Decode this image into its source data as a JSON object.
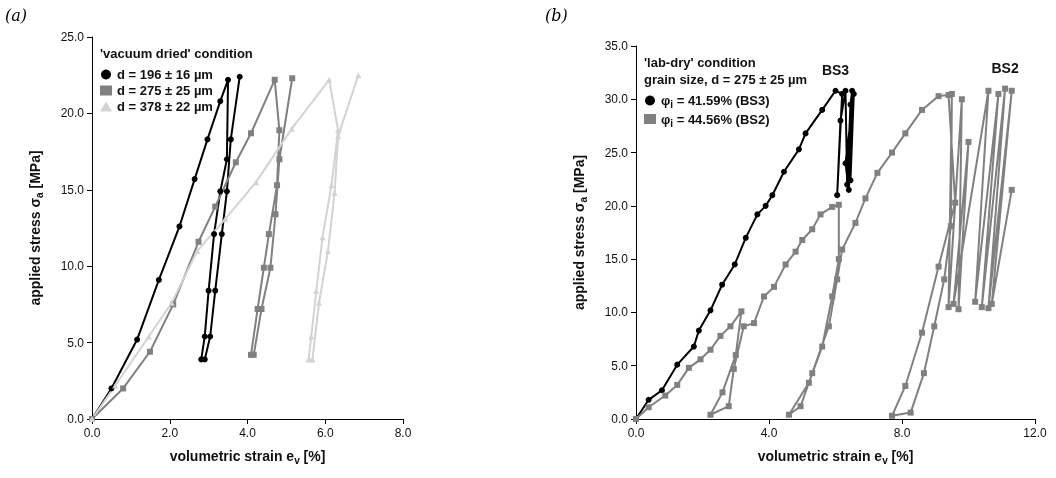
{
  "chart_data": [
    {
      "type": "line",
      "title": "(a)",
      "legend_title": "'vacuum dried' condition",
      "xlabel": "volumetric strain e$_{v}$ [%]",
      "ylabel": "applied stress σ$_{a}$ [MPa]",
      "xlim": [
        0,
        8
      ],
      "ylim": [
        0,
        25
      ],
      "xticks": [
        {
          "value": 0,
          "label": "0.0"
        },
        {
          "value": 2,
          "label": "2.0"
        },
        {
          "value": 4,
          "label": "4.0"
        },
        {
          "value": 6,
          "label": "6.0"
        },
        {
          "value": 8,
          "label": "8.0"
        }
      ],
      "yticks": [
        {
          "value": 0,
          "label": "0.0"
        },
        {
          "value": 5,
          "label": "5.0"
        },
        {
          "value": 10,
          "label": "10.0"
        },
        {
          "value": 15,
          "label": "15.0"
        },
        {
          "value": 20,
          "label": "20.0"
        },
        {
          "value": 25,
          "label": "25.0"
        }
      ],
      "grid": false,
      "legend": "top left",
      "line_style": "solid",
      "series": [
        {
          "name": "d = 196 ± 16 µm",
          "color": "#000000",
          "marker": "circle",
          "x": [
            0,
            0.5,
            1.16,
            1.72,
            2.25,
            2.64,
            2.97,
            3.3,
            3.5,
            3.47,
            3.3,
            3.14,
            3.0,
            2.9,
            2.81,
            2.9,
            3.04,
            3.17,
            3.34,
            3.47,
            3.57,
            3.8
          ],
          "values": [
            0,
            2.0,
            5.2,
            9.1,
            12.6,
            15.7,
            18.3,
            20.8,
            22.2,
            17.0,
            14.9,
            12.1,
            8.4,
            5.4,
            3.9,
            3.9,
            5.4,
            8.4,
            12.1,
            14.9,
            18.3,
            22.4
          ]
        },
        {
          "name": "d = 275 ± 25 µm",
          "color": "#808080",
          "marker": "square",
          "x": [
            0,
            0.8,
            1.49,
            2.09,
            2.74,
            3.17,
            3.7,
            4.09,
            4.7,
            4.82,
            4.76,
            4.55,
            4.42,
            4.26,
            4.09,
            4.16,
            4.36,
            4.59,
            4.72,
            4.82,
            5.15
          ],
          "values": [
            0,
            2.0,
            4.4,
            7.5,
            11.6,
            13.9,
            16.8,
            18.7,
            22.2,
            18.9,
            15.3,
            12.1,
            9.9,
            7.2,
            4.2,
            4.2,
            7.2,
            9.9,
            13.4,
            17.0,
            22.3
          ]
        },
        {
          "name": "d = 378 ± 22 µm",
          "color": "#d3d3d3",
          "marker": "triangle",
          "x": [
            0,
            0.6,
            1.46,
            2.05,
            2.71,
            3.43,
            4.22,
            5.14,
            6.1,
            6.33,
            6.16,
            5.93,
            5.77,
            5.64,
            5.57,
            5.67,
            5.84,
            6.07,
            6.24,
            6.33,
            6.85
          ],
          "values": [
            0,
            2.2,
            5.4,
            7.6,
            11.0,
            13.1,
            15.5,
            19.0,
            22.2,
            18.9,
            15.3,
            11.9,
            8.4,
            5.4,
            3.9,
            3.9,
            7.6,
            11.0,
            14.8,
            18.5,
            22.5
          ]
        }
      ]
    },
    {
      "type": "line",
      "title": "(b)",
      "legend_title": "'lab-dry' condition\ngrain size, d = 275 ± 25 µm",
      "xlabel": "volumetric strain e$_{v}$ [%]",
      "ylabel": "applied stress σ$_{a}$ [MPa]",
      "xlim": [
        0,
        12
      ],
      "ylim": [
        0,
        35
      ],
      "xticks": [
        {
          "value": 0,
          "label": "0.0"
        },
        {
          "value": 4,
          "label": "4.0"
        },
        {
          "value": 8,
          "label": "8.0"
        },
        {
          "value": 12,
          "label": "12.0"
        }
      ],
      "yticks": [
        {
          "value": 0,
          "label": "0.0"
        },
        {
          "value": 5,
          "label": "5.0"
        },
        {
          "value": 10,
          "label": "10.0"
        },
        {
          "value": 15,
          "label": "15.0"
        },
        {
          "value": 20,
          "label": "20.0"
        },
        {
          "value": 25,
          "label": "25.0"
        },
        {
          "value": 30,
          "label": "30.0"
        },
        {
          "value": 35,
          "label": "35.0"
        }
      ],
      "grid": false,
      "legend": "top left",
      "line_style": "solid",
      "annotations": [
        "BS3",
        "BS2"
      ],
      "series": [
        {
          "name": "φ$_{i}$ = 41.59% (BS3)",
          "color": "#000000",
          "marker": "circle",
          "x": [
            0,
            0.38,
            0.78,
            1.24,
            1.74,
            1.89,
            2.24,
            2.59,
            2.97,
            3.3,
            3.65,
            3.9,
            4.1,
            4.45,
            4.9,
            5.1,
            5.6,
            6.0,
            6.2,
            6.05,
            6.15,
            6.3,
            6.35,
            6.45,
            6.5,
            6.4,
            6.3,
            6.55,
            6.45
          ],
          "values": [
            0,
            1.8,
            2.7,
            5.1,
            6.8,
            8.3,
            10.2,
            12.6,
            14.5,
            17.0,
            19.2,
            20.0,
            21.0,
            23.2,
            25.3,
            26.8,
            29.0,
            30.8,
            30.5,
            21.0,
            28.0,
            30.8,
            22.0,
            29.5,
            30.8,
            21.5,
            24.0,
            30.5,
            22.4
          ]
        },
        {
          "name": "φ$_{i}$ = 44.56% (BS2)",
          "color": "#808080",
          "marker": "square",
          "x": [
            0,
            0.38,
            0.88,
            1.24,
            1.59,
            1.94,
            2.24,
            2.54,
            2.84,
            3.17,
            3.0,
            2.6,
            2.24,
            2.79,
            2.94,
            3.24,
            3.55,
            3.85,
            4.15,
            4.5,
            4.8,
            5.0,
            5.3,
            5.55,
            5.9,
            6.1,
            6.1,
            5.9,
            5.6,
            5.2,
            4.6,
            4.95,
            5.3,
            5.8,
            6.05,
            6.2,
            6.6,
            6.9,
            7.26,
            7.7,
            8.1,
            8.6,
            9.1,
            9.4,
            9.6,
            9.1,
            8.6,
            8.1,
            7.7,
            8.26,
            8.66,
            8.97,
            9.27,
            9.47,
            9.5,
            9.4,
            9.8,
            9.7,
            10.0,
            9.55,
            10.6,
            10.2,
            10.9,
            10.4,
            11.1,
            10.6,
            11.3,
            10.7,
            11.3
          ],
          "values": [
            0,
            1.1,
            2.2,
            3.2,
            4.8,
            5.6,
            6.5,
            7.8,
            8.7,
            10.1,
            6.0,
            2.5,
            0.4,
            1.2,
            4.7,
            8.7,
            9.0,
            11.5,
            12.4,
            14.5,
            15.7,
            16.8,
            17.8,
            19.2,
            19.9,
            20.1,
            15.0,
            11.5,
            6.8,
            3.4,
            0.4,
            1.2,
            4.3,
            8.7,
            13.1,
            15.9,
            18.4,
            20.7,
            23.1,
            25.0,
            26.8,
            29.0,
            30.3,
            30.4,
            20.3,
            14.3,
            8.1,
            3.1,
            0.3,
            0.6,
            4.3,
            8.7,
            13.1,
            18.1,
            30.5,
            10.5,
            30.0,
            10.3,
            26.0,
            10.8,
            30.8,
            11.0,
            30.5,
            10.5,
            31.0,
            10.4,
            30.8,
            10.8,
            21.5
          ]
        }
      ]
    }
  ]
}
